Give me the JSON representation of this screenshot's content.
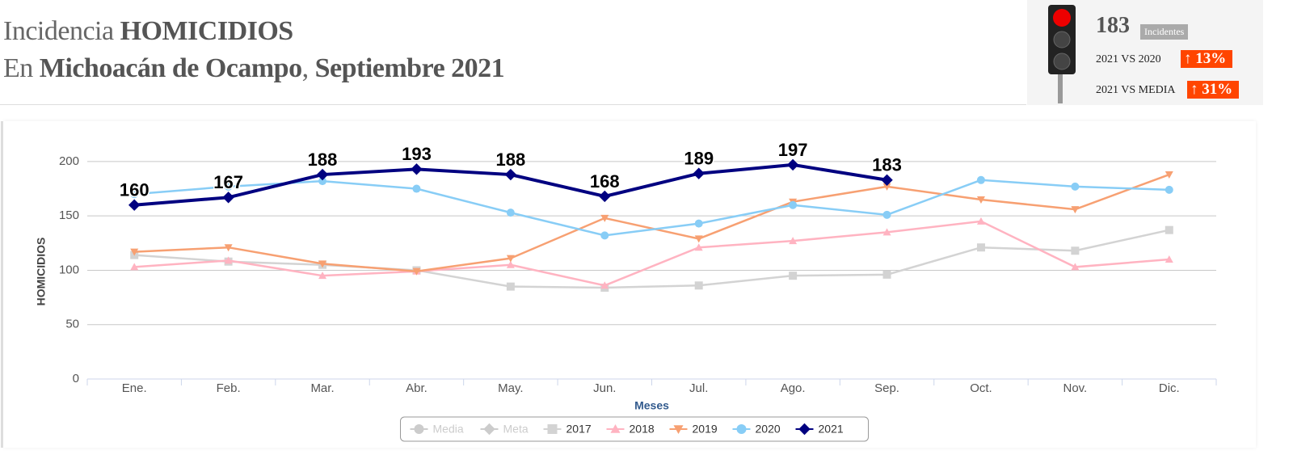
{
  "header": {
    "line1": [
      "Incidencia ",
      "HOMICIDIOS"
    ],
    "line2": [
      "En ",
      "Michoacán de Ocampo",
      ", ",
      "Septiembre 2021"
    ]
  },
  "indicator": {
    "count": "183",
    "count_label": "Incidentes",
    "rows": [
      {
        "label": "2021 VS 2020",
        "value": "13%"
      },
      {
        "label": "2021 VS MEDIA",
        "value": "31%"
      }
    ]
  },
  "chart_data": {
    "type": "line",
    "categories": [
      "Ene.",
      "Feb.",
      "Mar.",
      "Abr.",
      "May.",
      "Jun.",
      "Jul.",
      "Ago.",
      "Sep.",
      "Oct.",
      "Nov.",
      "Dic."
    ],
    "ylabel": "HOMICIDIOS",
    "xlabel": "Meses",
    "ylim": [
      0,
      220
    ],
    "yticks": [
      0,
      50,
      100,
      150,
      200
    ],
    "grid": true,
    "legend": "bottom",
    "series": [
      {
        "name": "Media",
        "color": "#cccccc",
        "marker": "circle",
        "visible": false,
        "values": [
          null,
          null,
          null,
          null,
          null,
          null,
          null,
          null,
          null,
          null,
          null,
          null
        ]
      },
      {
        "name": "Meta",
        "color": "#cccccc",
        "marker": "diamond",
        "visible": false,
        "values": [
          null,
          null,
          null,
          null,
          null,
          null,
          null,
          null,
          null,
          null,
          null,
          null
        ]
      },
      {
        "name": "2017",
        "color": "#d3d3d3",
        "marker": "square",
        "values": [
          114,
          108,
          105,
          100,
          85,
          84,
          86,
          95,
          96,
          121,
          118,
          137
        ]
      },
      {
        "name": "2018",
        "color": "#ffb3c1",
        "marker": "triangle",
        "values": [
          103,
          109,
          95,
          99,
          105,
          86,
          121,
          127,
          135,
          145,
          103,
          110
        ]
      },
      {
        "name": "2019",
        "color": "#f7a072",
        "marker": "triangle-down",
        "values": [
          117,
          121,
          106,
          99,
          111,
          148,
          129,
          163,
          177,
          165,
          156,
          188
        ]
      },
      {
        "name": "2020",
        "color": "#88cdf6",
        "marker": "circle",
        "values": [
          170,
          177,
          182,
          175,
          153,
          132,
          143,
          160,
          151,
          183,
          177,
          174
        ]
      },
      {
        "name": "2021",
        "color": "#000080",
        "marker": "diamond",
        "width": 4,
        "data_labels": true,
        "values": [
          160,
          167,
          188,
          193,
          188,
          168,
          189,
          197,
          183,
          null,
          null,
          null
        ]
      }
    ]
  }
}
